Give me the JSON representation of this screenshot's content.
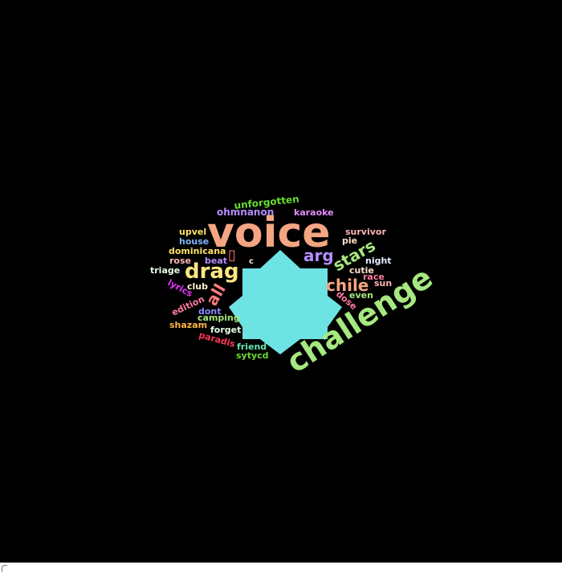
{
  "wordcloud": {
    "shape_color": "#6ee3e3",
    "background": "#000000",
    "words": [
      {
        "id": "voice",
        "text": "voice",
        "color": "#f4a582"
      },
      {
        "id": "challenge",
        "text": "challenge",
        "color": "#a6e87f"
      },
      {
        "id": "drag",
        "text": "drag",
        "color": "#ffe680"
      },
      {
        "id": "chile",
        "text": "chile",
        "color": "#f4a582"
      },
      {
        "id": "stars",
        "text": "stars",
        "color": "#a6e87f"
      },
      {
        "id": "arg",
        "text": "arg",
        "color": "#b58cff"
      },
      {
        "id": "all",
        "text": "all",
        "color": "#ff7a7a"
      },
      {
        "id": "box",
        "text": "▯",
        "color": "#ff7a7a"
      },
      {
        "id": "unforgotten",
        "text": "unforgotten",
        "color": "#66dd33"
      },
      {
        "id": "ohmnanon",
        "text": "ohmnanon",
        "color": "#b58cff"
      },
      {
        "id": "karaoke",
        "text": "karaoke",
        "color": "#e58cff"
      },
      {
        "id": "upvel",
        "text": "upvel",
        "color": "#ffe066"
      },
      {
        "id": "house",
        "text": "house",
        "color": "#80b3ff"
      },
      {
        "id": "survivor",
        "text": "survivor",
        "color": "#ffb3b3"
      },
      {
        "id": "pie",
        "text": "pie",
        "color": "#ffe0cc"
      },
      {
        "id": "dominicana",
        "text": "dominicana",
        "color": "#ffe066"
      },
      {
        "id": "rose",
        "text": "rose",
        "color": "#ffb3b3"
      },
      {
        "id": "beat",
        "text": "beat",
        "color": "#b58cff"
      },
      {
        "id": "c",
        "text": "c",
        "color": "#ffe0cc"
      },
      {
        "id": "night",
        "text": "night",
        "color": "#e6f0ff"
      },
      {
        "id": "triage",
        "text": "triage",
        "color": "#e6ffe6"
      },
      {
        "id": "cutie",
        "text": "cutie",
        "color": "#ffe0cc"
      },
      {
        "id": "race",
        "text": "race",
        "color": "#ff7aa0"
      },
      {
        "id": "sun",
        "text": "sun",
        "color": "#ffb3b3"
      },
      {
        "id": "lyrics",
        "text": "lyrics",
        "color": "#e033ff"
      },
      {
        "id": "club",
        "text": "club",
        "color": "#fff0cc"
      },
      {
        "id": "even",
        "text": "even",
        "color": "#a6e87f"
      },
      {
        "id": "edition",
        "text": "edition",
        "color": "#ff7aa0"
      },
      {
        "id": "dose",
        "text": "dose",
        "color": "#ff7aa0"
      },
      {
        "id": "dont",
        "text": "dont",
        "color": "#8c8cff"
      },
      {
        "id": "camping",
        "text": "camping",
        "color": "#a6e87f"
      },
      {
        "id": "shazam",
        "text": "shazam",
        "color": "#ffb347"
      },
      {
        "id": "forget",
        "text": "forget",
        "color": "#e6ffe6"
      },
      {
        "id": "paradis",
        "text": "paradis",
        "color": "#ff3355"
      },
      {
        "id": "friend",
        "text": "friend",
        "color": "#66e6b3"
      },
      {
        "id": "sytycd",
        "text": "sytycd",
        "color": "#66dd33"
      }
    ]
  }
}
